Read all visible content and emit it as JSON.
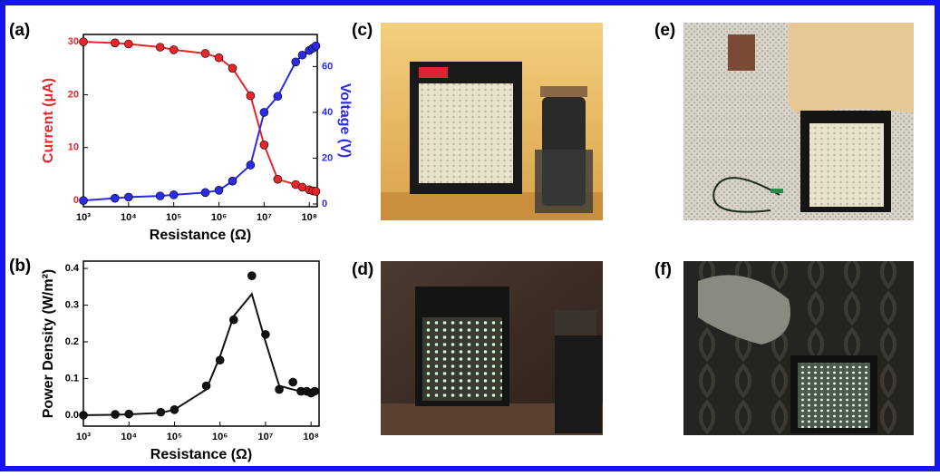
{
  "chart_data": [
    {
      "type": "line",
      "panel_label": "(a)",
      "x_label": "Resistance (Ω)",
      "y_label": "Current (μA)",
      "y2_label": "Voltage (V)",
      "x": [
        1000,
        5000,
        10000,
        50000,
        100000,
        500000,
        1000000,
        2000000,
        5000000,
        10000000,
        20000000,
        50000000,
        70000000,
        100000000,
        120000000,
        140000000
      ],
      "xlim": [
        1000,
        150000000
      ],
      "log_x": true,
      "xticks": [
        {
          "value": 1000,
          "label": "10³"
        },
        {
          "value": 10000,
          "label": "10⁴"
        },
        {
          "value": 100000,
          "label": "10⁵"
        },
        {
          "value": 1000000,
          "label": "10⁶"
        },
        {
          "value": 10000000,
          "label": "10⁷"
        },
        {
          "value": 100000000,
          "label": "10⁸"
        }
      ],
      "ylim": [
        -1.2,
        31.4
      ],
      "yticks": [
        0,
        10,
        20,
        30
      ],
      "y2lim": [
        -1.2,
        74
      ],
      "y2ticks": [
        0,
        20,
        40,
        60
      ],
      "series": [
        {
          "color": "#e8262a",
          "axis": "y",
          "values": [
            30,
            29.8,
            29.6,
            29,
            28.5,
            27.8,
            27,
            25,
            19.8,
            10.5,
            4,
            3,
            2.5,
            2,
            1.8,
            1.7
          ]
        },
        {
          "color": "#2a2ae8",
          "axis": "y2",
          "values": [
            1.5,
            2.5,
            3,
            3.5,
            4,
            5,
            6,
            10,
            17,
            40,
            47,
            62,
            65,
            67,
            68,
            69
          ]
        }
      ]
    },
    {
      "type": "scatter",
      "panel_label": "(b)",
      "x_label": "Resistance (Ω)",
      "y_label": "Power Density (W/m²)",
      "x": [
        1000,
        5000,
        10000,
        50000,
        100000,
        500000,
        1000000,
        2000000,
        5000000,
        10000000,
        20000000,
        40000000,
        60000000,
        80000000,
        100000000,
        120000000
      ],
      "xlim": [
        1000,
        150000000
      ],
      "log_x": true,
      "xticks": [
        {
          "value": 1000,
          "label": "10³"
        },
        {
          "value": 10000,
          "label": "10⁴"
        },
        {
          "value": 100000,
          "label": "10⁵"
        },
        {
          "value": 1000000,
          "label": "10⁶"
        },
        {
          "value": 10000000,
          "label": "10⁷"
        },
        {
          "value": 100000000,
          "label": "10⁸"
        }
      ],
      "ylim": [
        -0.03,
        0.42
      ],
      "yticks": [
        {
          "value": 0,
          "label": "0.0"
        },
        0.1,
        0.2,
        0.3,
        0.4
      ],
      "color": "#111111",
      "values": [
        0,
        0.002,
        0.003,
        0.008,
        0.015,
        0.08,
        0.15,
        0.26,
        0.38,
        0.22,
        0.07,
        0.09,
        0.065,
        0.065,
        0.06,
        0.065
      ],
      "fit": [
        0,
        0.001,
        0.002,
        0.006,
        0.015,
        0.07,
        0.16,
        0.27,
        0.33,
        0.2,
        0.08,
        0.07,
        0.065,
        0.065,
        0.065,
        0.065
      ]
    }
  ],
  "photos": [
    {
      "label": "(c)"
    },
    {
      "label": "(d)"
    },
    {
      "label": "(e)"
    },
    {
      "label": "(f)"
    }
  ]
}
